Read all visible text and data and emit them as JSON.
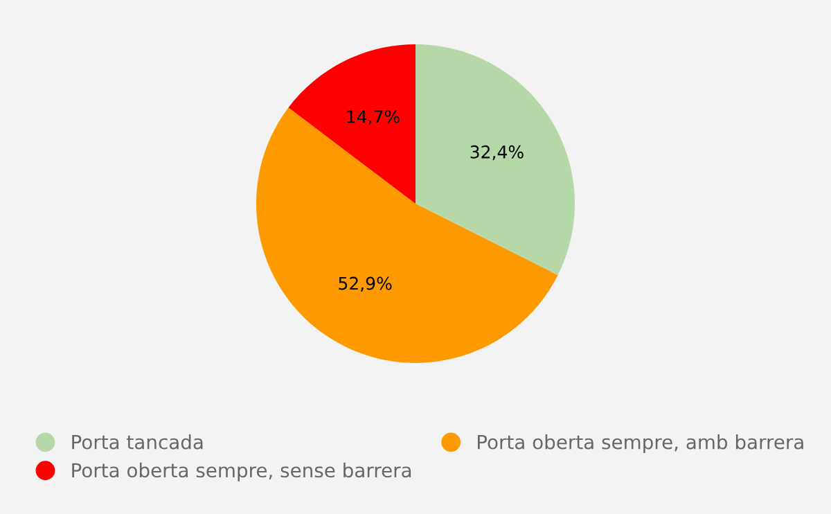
{
  "chart_data": {
    "type": "pie",
    "categories": [
      "Porta tancada",
      "Porta oberta sempre, amb barrera",
      "Porta oberta sempre, sense barrera"
    ],
    "values": [
      32.4,
      52.9,
      14.7
    ],
    "value_labels": [
      "32,4%",
      "52,9%",
      "14,7%"
    ],
    "colors": [
      "#b6d7a8",
      "#ff9900",
      "#ff0000"
    ],
    "legend": "bottom"
  }
}
